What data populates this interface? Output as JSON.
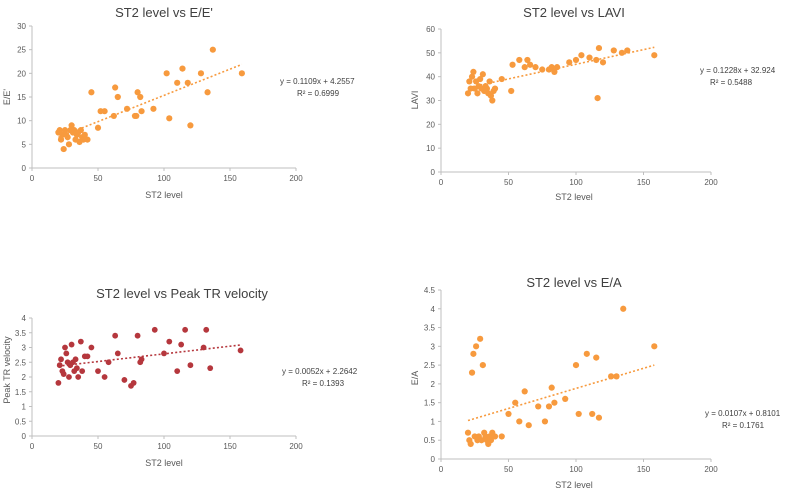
{
  "chart_data": [
    {
      "id": "c1",
      "type": "scatter",
      "title": "ST2 level vs E/E'",
      "xlabel": "ST2 level",
      "ylabel": "E/E'",
      "xlim": [
        0,
        200
      ],
      "ylim": [
        0,
        30
      ],
      "xticks": [
        0,
        50,
        100,
        150,
        200
      ],
      "yticks": [
        0,
        5,
        10,
        15,
        20,
        25,
        30
      ],
      "color": "#f79a3e",
      "trendline": {
        "slope": 0.1109,
        "intercept": 4.2557,
        "equation": "y = 0.1109x + 4.2557",
        "r2": "R² = 0.6999"
      },
      "points": [
        [
          20,
          7.5
        ],
        [
          21,
          8
        ],
        [
          22,
          6
        ],
        [
          23,
          7
        ],
        [
          24,
          4
        ],
        [
          25,
          8
        ],
        [
          26,
          7
        ],
        [
          27,
          6.5
        ],
        [
          28,
          5
        ],
        [
          29,
          8
        ],
        [
          30,
          9
        ],
        [
          31,
          7.5
        ],
        [
          32,
          8
        ],
        [
          33,
          6
        ],
        [
          34,
          7
        ],
        [
          35,
          7.5
        ],
        [
          36,
          5.5
        ],
        [
          37,
          8
        ],
        [
          38,
          6.5
        ],
        [
          39,
          6
        ],
        [
          40,
          7
        ],
        [
          42,
          6
        ],
        [
          45,
          16
        ],
        [
          50,
          8.5
        ],
        [
          52,
          12
        ],
        [
          55,
          12
        ],
        [
          62,
          11
        ],
        [
          63,
          17
        ],
        [
          65,
          15
        ],
        [
          72,
          12.5
        ],
        [
          78,
          11
        ],
        [
          79,
          11
        ],
        [
          80,
          16
        ],
        [
          82,
          15
        ],
        [
          83,
          12
        ],
        [
          92,
          12.5
        ],
        [
          102,
          20
        ],
        [
          104,
          10.5
        ],
        [
          110,
          18
        ],
        [
          114,
          21
        ],
        [
          118,
          18
        ],
        [
          120,
          9
        ],
        [
          128,
          20
        ],
        [
          133,
          16
        ],
        [
          137,
          25
        ],
        [
          159,
          20
        ]
      ]
    },
    {
      "id": "c2",
      "type": "scatter",
      "title": "ST2 level vs LAVI",
      "xlabel": "ST2 level",
      "ylabel": "LAVI",
      "xlim": [
        0,
        200
      ],
      "ylim": [
        0,
        60
      ],
      "xticks": [
        0,
        50,
        100,
        150,
        200
      ],
      "yticks": [
        0,
        10,
        20,
        30,
        40,
        50,
        60
      ],
      "color": "#f79a3e",
      "trendline": {
        "slope": 0.1228,
        "intercept": 32.924,
        "equation": "y = 0.1228x + 32.924",
        "r2": "R² = 0.5488"
      },
      "points": [
        [
          20,
          33
        ],
        [
          21,
          38
        ],
        [
          22,
          35
        ],
        [
          23,
          40
        ],
        [
          24,
          42
        ],
        [
          25,
          35
        ],
        [
          26,
          38
        ],
        [
          27,
          33
        ],
        [
          28,
          36
        ],
        [
          29,
          39
        ],
        [
          30,
          35
        ],
        [
          31,
          41
        ],
        [
          32,
          34
        ],
        [
          33,
          36
        ],
        [
          34,
          35
        ],
        [
          35,
          33
        ],
        [
          36,
          38
        ],
        [
          37,
          32
        ],
        [
          38,
          30
        ],
        [
          39,
          34
        ],
        [
          40,
          35
        ],
        [
          45,
          39
        ],
        [
          52,
          34
        ],
        [
          53,
          45
        ],
        [
          58,
          47
        ],
        [
          62,
          44
        ],
        [
          64,
          47
        ],
        [
          66,
          45
        ],
        [
          70,
          44
        ],
        [
          75,
          43
        ],
        [
          80,
          43
        ],
        [
          82,
          44
        ],
        [
          84,
          42
        ],
        [
          86,
          44
        ],
        [
          95,
          46
        ],
        [
          100,
          47
        ],
        [
          104,
          49
        ],
        [
          110,
          48
        ],
        [
          115,
          47
        ],
        [
          116,
          31
        ],
        [
          117,
          52
        ],
        [
          120,
          46
        ],
        [
          128,
          51
        ],
        [
          134,
          50
        ],
        [
          138,
          51
        ],
        [
          158,
          49
        ]
      ]
    },
    {
      "id": "c3",
      "type": "scatter",
      "title": "ST2 level vs Peak TR velocity",
      "xlabel": "ST2 level",
      "ylabel": "Peak TR velocity",
      "xlim": [
        0,
        200
      ],
      "ylim": [
        0,
        4
      ],
      "xticks": [
        0,
        50,
        100,
        150,
        200
      ],
      "yticks": [
        0,
        0.5,
        1,
        1.5,
        2,
        2.5,
        3,
        3.5,
        4
      ],
      "tickLabels": [
        "0",
        "0.5",
        "1",
        "1.5",
        "2",
        "2.5",
        "3",
        "3.5",
        "4"
      ],
      "color": "#b5373d",
      "trendline": {
        "slope": 0.0052,
        "intercept": 2.2642,
        "equation": "y = 0.0052x + 2.2642",
        "r2": "R² = 0.1393"
      },
      "points": [
        [
          20,
          1.8
        ],
        [
          21,
          2.4
        ],
        [
          22,
          2.6
        ],
        [
          23,
          2.2
        ],
        [
          24,
          2.1
        ],
        [
          25,
          3
        ],
        [
          26,
          2.8
        ],
        [
          27,
          2.5
        ],
        [
          28,
          2
        ],
        [
          29,
          2.4
        ],
        [
          30,
          3.1
        ],
        [
          31,
          2.5
        ],
        [
          32,
          2.2
        ],
        [
          33,
          2.6
        ],
        [
          34,
          2.3
        ],
        [
          35,
          2
        ],
        [
          37,
          3.2
        ],
        [
          38,
          2.2
        ],
        [
          40,
          2.7
        ],
        [
          42,
          2.7
        ],
        [
          45,
          3
        ],
        [
          50,
          2.2
        ],
        [
          55,
          2
        ],
        [
          58,
          2.5
        ],
        [
          63,
          3.4
        ],
        [
          65,
          2.8
        ],
        [
          70,
          1.9
        ],
        [
          75,
          1.7
        ],
        [
          77,
          1.8
        ],
        [
          80,
          3.4
        ],
        [
          82,
          2.5
        ],
        [
          83,
          2.6
        ],
        [
          93,
          3.6
        ],
        [
          100,
          2.8
        ],
        [
          104,
          3.2
        ],
        [
          110,
          2.2
        ],
        [
          113,
          3.1
        ],
        [
          116,
          3.6
        ],
        [
          120,
          2.4
        ],
        [
          130,
          3
        ],
        [
          132,
          3.6
        ],
        [
          135,
          2.3
        ],
        [
          158,
          2.9
        ]
      ]
    },
    {
      "id": "c4",
      "type": "scatter",
      "title": "ST2 level vs E/A",
      "xlabel": "ST2 level",
      "ylabel": "E/A",
      "xlim": [
        0,
        200
      ],
      "ylim": [
        0,
        4.5
      ],
      "xticks": [
        0,
        50,
        100,
        150,
        200
      ],
      "yticks": [
        0,
        0.5,
        1,
        1.5,
        2,
        2.5,
        3,
        3.5,
        4,
        4.5
      ],
      "tickLabels": [
        "0",
        "0.5",
        "1",
        "1.5",
        "2",
        "2.5",
        "3",
        "3.5",
        "4",
        "4.5"
      ],
      "color": "#f79a3e",
      "trendline": {
        "slope": 0.0107,
        "intercept": 0.8101,
        "equation": "y = 0.0107x + 0.8101",
        "r2": "R² = 0.1761"
      },
      "points": [
        [
          20,
          0.7
        ],
        [
          21,
          0.5
        ],
        [
          22,
          0.4
        ],
        [
          23,
          2.3
        ],
        [
          24,
          2.8
        ],
        [
          25,
          0.6
        ],
        [
          26,
          3
        ],
        [
          27,
          0.5
        ],
        [
          28,
          0.6
        ],
        [
          29,
          3.2
        ],
        [
          30,
          0.5
        ],
        [
          31,
          2.5
        ],
        [
          32,
          0.7
        ],
        [
          33,
          0.6
        ],
        [
          34,
          0.5
        ],
        [
          35,
          0.4
        ],
        [
          36,
          0.6
        ],
        [
          37,
          0.5
        ],
        [
          38,
          0.7
        ],
        [
          40,
          0.6
        ],
        [
          45,
          0.6
        ],
        [
          50,
          1.2
        ],
        [
          55,
          1.5
        ],
        [
          58,
          1
        ],
        [
          62,
          1.8
        ],
        [
          65,
          0.9
        ],
        [
          72,
          1.4
        ],
        [
          77,
          1
        ],
        [
          80,
          1.4
        ],
        [
          82,
          1.9
        ],
        [
          84,
          1.5
        ],
        [
          92,
          1.6
        ],
        [
          100,
          2.5
        ],
        [
          102,
          1.2
        ],
        [
          108,
          2.8
        ],
        [
          112,
          1.2
        ],
        [
          115,
          2.7
        ],
        [
          117,
          1.1
        ],
        [
          126,
          2.2
        ],
        [
          130,
          2.2
        ],
        [
          135,
          4
        ],
        [
          158,
          3
        ]
      ]
    }
  ]
}
